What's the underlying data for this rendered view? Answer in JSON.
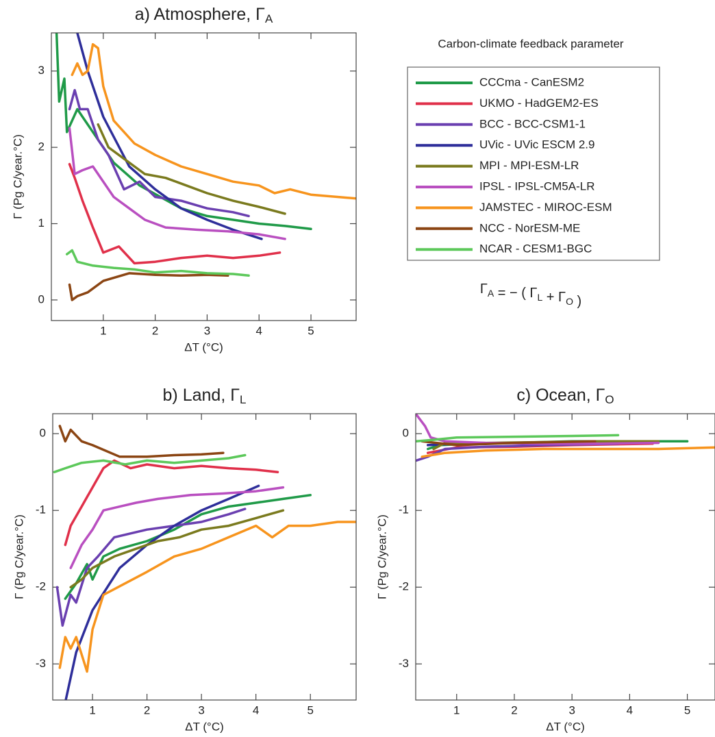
{
  "chart_data": [
    {
      "type": "line",
      "title": "a) Atmosphere, Γ",
      "title_subscript": "A",
      "x_label": "ΔT (°C)",
      "y_label": "Γ (Pg C/year.°C)",
      "xlim": [
        0,
        5.87
      ],
      "ylim": [
        -0.27,
        3.5
      ],
      "xticks": [
        1,
        2,
        3,
        4,
        5
      ],
      "yticks": [
        0,
        1,
        2,
        3
      ],
      "series": [
        {
          "name": "CCCma - CanESM2",
          "color": "#1f9a48",
          "x": [
            0.1,
            0.15,
            0.25,
            0.3,
            0.5,
            0.8,
            1.2,
            1.7,
            2.5,
            3.0,
            3.5,
            4.0,
            4.5,
            5.0
          ],
          "values": [
            3.5,
            2.6,
            2.9,
            2.2,
            2.5,
            2.2,
            1.8,
            1.5,
            1.2,
            1.1,
            1.05,
            1.0,
            0.97,
            0.93
          ]
        },
        {
          "name": "UKMO - HadGEM2-ES",
          "color": "#e0304a",
          "x": [
            0.35,
            0.45,
            0.6,
            0.8,
            1.0,
            1.3,
            1.6,
            2.0,
            2.5,
            3.0,
            3.5,
            4.0,
            4.4
          ],
          "values": [
            1.78,
            1.6,
            1.3,
            0.95,
            0.62,
            0.7,
            0.48,
            0.5,
            0.55,
            0.58,
            0.55,
            0.58,
            0.62
          ]
        },
        {
          "name": "BCC - BCC-CSM1-1",
          "color": "#6a3fb0",
          "x": [
            0.35,
            0.45,
            0.55,
            0.7,
            0.9,
            1.1,
            1.4,
            1.7,
            2.0,
            2.5,
            3.0,
            3.5,
            3.8
          ],
          "values": [
            2.5,
            2.75,
            2.5,
            2.5,
            2.1,
            1.9,
            1.45,
            1.55,
            1.35,
            1.3,
            1.2,
            1.15,
            1.1
          ]
        },
        {
          "name": "UVic - UVic ESCM 2.9",
          "color": "#2e2e9a",
          "x": [
            0.5,
            0.7,
            1.0,
            1.5,
            2.0,
            2.5,
            3.0,
            3.5,
            4.05
          ],
          "values": [
            3.5,
            3.0,
            2.4,
            1.75,
            1.45,
            1.2,
            1.05,
            0.92,
            0.8
          ]
        },
        {
          "name": "MPI - MPI-ESM-LR",
          "color": "#7a7a1e",
          "x": [
            0.9,
            1.1,
            1.4,
            1.8,
            2.2,
            2.6,
            3.0,
            3.5,
            4.0,
            4.5
          ],
          "values": [
            2.3,
            2.0,
            1.85,
            1.65,
            1.6,
            1.5,
            1.4,
            1.3,
            1.22,
            1.13
          ]
        },
        {
          "name": "IPSL - IPSL-CM5A-LR",
          "color": "#b94fc0",
          "x": [
            0.35,
            0.45,
            0.6,
            0.8,
            1.0,
            1.2,
            1.5,
            1.8,
            2.2,
            2.8,
            3.4,
            4.0,
            4.5
          ],
          "values": [
            2.25,
            1.65,
            1.7,
            1.75,
            1.55,
            1.35,
            1.2,
            1.05,
            0.95,
            0.92,
            0.9,
            0.86,
            0.8
          ]
        },
        {
          "name": "JAMSTEC - MIROC-ESM",
          "color": "#f7941d",
          "x": [
            0.4,
            0.5,
            0.6,
            0.7,
            0.8,
            0.9,
            1.0,
            1.2,
            1.6,
            2.0,
            2.5,
            3.0,
            3.5,
            4.0,
            4.3,
            4.6,
            5.0,
            5.87
          ],
          "values": [
            2.95,
            3.1,
            2.95,
            3.0,
            3.35,
            3.3,
            2.8,
            2.35,
            2.05,
            1.9,
            1.75,
            1.65,
            1.55,
            1.5,
            1.4,
            1.45,
            1.38,
            1.33
          ]
        },
        {
          "name": "NCC - NorESM-ME",
          "color": "#8b4513",
          "x": [
            0.35,
            0.4,
            0.5,
            0.7,
            1.0,
            1.5,
            2.0,
            2.5,
            3.0,
            3.4
          ],
          "values": [
            0.2,
            0.0,
            0.05,
            0.1,
            0.25,
            0.35,
            0.33,
            0.32,
            0.33,
            0.32
          ]
        },
        {
          "name": "NCAR - CESM1-BGC",
          "color": "#5cc85a",
          "x": [
            0.3,
            0.4,
            0.5,
            0.8,
            1.2,
            1.6,
            2.0,
            2.5,
            3.0,
            3.5,
            3.8
          ],
          "values": [
            0.6,
            0.65,
            0.5,
            0.45,
            0.42,
            0.4,
            0.36,
            0.38,
            0.35,
            0.34,
            0.32
          ]
        }
      ]
    },
    {
      "type": "line",
      "title": "b) Land, Γ",
      "title_subscript": "L",
      "x_label": "ΔT (°C)",
      "y_label": "Γ (Pg C/year.°C)",
      "xlim": [
        0.27,
        5.84
      ],
      "ylim": [
        -3.47,
        0.26
      ],
      "xticks": [
        1,
        2,
        3,
        4,
        5
      ],
      "yticks": [
        0,
        -1,
        -2,
        -3
      ],
      "series": [
        {
          "color": "#1f9a48",
          "x": [
            0.5,
            0.7,
            0.9,
            1.0,
            1.2,
            1.5,
            2.0,
            2.5,
            3.0,
            3.5,
            4.0,
            4.5,
            5.0
          ],
          "values": [
            -2.15,
            -1.95,
            -1.7,
            -1.9,
            -1.6,
            -1.5,
            -1.4,
            -1.25,
            -1.05,
            -0.95,
            -0.9,
            -0.85,
            -0.8
          ]
        },
        {
          "color": "#e0304a",
          "x": [
            0.5,
            0.6,
            0.8,
            1.0,
            1.2,
            1.4,
            1.7,
            2.0,
            2.5,
            3.0,
            3.5,
            4.0,
            4.4
          ],
          "values": [
            -1.45,
            -1.2,
            -0.95,
            -0.7,
            -0.45,
            -0.35,
            -0.45,
            -0.4,
            -0.45,
            -0.42,
            -0.45,
            -0.47,
            -0.5
          ]
        },
        {
          "color": "#6a3fb0",
          "x": [
            0.35,
            0.45,
            0.6,
            0.7,
            0.9,
            1.1,
            1.4,
            1.7,
            2.0,
            2.5,
            3.0,
            3.5,
            3.8
          ],
          "values": [
            -2.0,
            -2.5,
            -2.1,
            -2.2,
            -1.75,
            -1.6,
            -1.35,
            -1.3,
            -1.25,
            -1.2,
            -1.15,
            -1.05,
            -0.98
          ]
        },
        {
          "color": "#2e2e9a",
          "x": [
            0.5,
            0.7,
            1.0,
            1.5,
            2.0,
            2.5,
            3.0,
            3.5,
            4.05
          ],
          "values": [
            -3.5,
            -2.85,
            -2.3,
            -1.75,
            -1.45,
            -1.2,
            -1.0,
            -0.85,
            -0.68
          ]
        },
        {
          "color": "#7a7a1e",
          "x": [
            0.6,
            0.8,
            1.0,
            1.4,
            1.8,
            2.2,
            2.6,
            3.0,
            3.5,
            4.0,
            4.5
          ],
          "values": [
            -2.0,
            -1.9,
            -1.75,
            -1.6,
            -1.5,
            -1.4,
            -1.35,
            -1.25,
            -1.2,
            -1.1,
            -1.0
          ]
        },
        {
          "color": "#b94fc0",
          "x": [
            0.6,
            0.8,
            1.0,
            1.2,
            1.5,
            1.8,
            2.2,
            2.8,
            3.4,
            4.0,
            4.5
          ],
          "values": [
            -1.75,
            -1.45,
            -1.25,
            -1.0,
            -0.95,
            -0.9,
            -0.85,
            -0.8,
            -0.78,
            -0.75,
            -0.7
          ]
        },
        {
          "color": "#f7941d",
          "x": [
            0.4,
            0.5,
            0.6,
            0.7,
            0.9,
            1.0,
            1.2,
            1.6,
            2.0,
            2.5,
            3.0,
            3.5,
            4.0,
            4.3,
            4.6,
            5.0,
            5.5,
            5.84
          ],
          "values": [
            -3.05,
            -2.65,
            -2.8,
            -2.65,
            -3.1,
            -2.55,
            -2.1,
            -1.95,
            -1.8,
            -1.6,
            -1.5,
            -1.35,
            -1.2,
            -1.35,
            -1.2,
            -1.2,
            -1.15,
            -1.15
          ]
        },
        {
          "color": "#8b4513",
          "x": [
            0.4,
            0.5,
            0.6,
            0.8,
            1.0,
            1.5,
            2.0,
            2.5,
            3.0,
            3.4
          ],
          "values": [
            0.1,
            -0.1,
            0.05,
            -0.1,
            -0.15,
            -0.3,
            -0.3,
            -0.28,
            -0.27,
            -0.25
          ]
        },
        {
          "color": "#5cc85a",
          "x": [
            0.3,
            0.5,
            0.8,
            1.2,
            1.6,
            2.0,
            2.5,
            3.0,
            3.5,
            3.8
          ],
          "values": [
            -0.5,
            -0.45,
            -0.38,
            -0.35,
            -0.4,
            -0.35,
            -0.38,
            -0.35,
            -0.32,
            -0.28
          ]
        }
      ]
    },
    {
      "type": "line",
      "title": "c) Ocean, Γ",
      "title_subscript": "O",
      "x_label": "ΔT (°C)",
      "y_label": "Γ (Pg C/year.°C)",
      "xlim": [
        0.29,
        5.48
      ],
      "ylim": [
        -3.47,
        0.26
      ],
      "xticks": [
        1,
        2,
        3,
        4,
        5
      ],
      "yticks": [
        0,
        -1,
        -2,
        -3
      ],
      "series": [
        {
          "color": "#1f9a48",
          "x": [
            0.5,
            0.7,
            1.0,
            2.0,
            3.0,
            4.0,
            5.0
          ],
          "values": [
            -0.2,
            -0.15,
            -0.14,
            -0.12,
            -0.1,
            -0.1,
            -0.1
          ]
        },
        {
          "color": "#e0304a",
          "x": [
            0.5,
            1.0,
            2.0,
            3.0,
            4.4
          ],
          "values": [
            -0.25,
            -0.18,
            -0.17,
            -0.15,
            -0.13
          ]
        },
        {
          "color": "#6a3fb0",
          "x": [
            0.3,
            0.5,
            0.8,
            1.5,
            2.5,
            3.8
          ],
          "values": [
            -0.35,
            -0.3,
            -0.2,
            -0.17,
            -0.15,
            -0.13
          ]
        },
        {
          "color": "#2e2e9a",
          "x": [
            0.5,
            1.0,
            2.0,
            3.0,
            4.05
          ],
          "values": [
            -0.15,
            -0.13,
            -0.12,
            -0.12,
            -0.12
          ]
        },
        {
          "color": "#7a7a1e",
          "x": [
            0.6,
            0.8,
            1.5,
            2.5,
            3.5,
            4.5
          ],
          "values": [
            -0.2,
            -0.12,
            -0.12,
            -0.11,
            -0.1,
            -0.1
          ]
        },
        {
          "color": "#b94fc0",
          "x": [
            0.3,
            0.45,
            0.55,
            0.8,
            1.5,
            2.5,
            3.5,
            4.5
          ],
          "values": [
            0.25,
            0.1,
            -0.05,
            -0.1,
            -0.12,
            -0.13,
            -0.13,
            -0.12
          ]
        },
        {
          "color": "#f7941d",
          "x": [
            0.4,
            0.8,
            1.5,
            2.5,
            3.5,
            4.5,
            5.48
          ],
          "values": [
            -0.3,
            -0.25,
            -0.22,
            -0.2,
            -0.2,
            -0.2,
            -0.18
          ]
        },
        {
          "color": "#8b4513",
          "x": [
            0.4,
            1.0,
            2.0,
            3.4
          ],
          "values": [
            -0.1,
            -0.15,
            -0.12,
            -0.1
          ]
        },
        {
          "color": "#5cc85a",
          "x": [
            0.3,
            0.6,
            1.0,
            2.0,
            3.0,
            3.8
          ],
          "values": [
            -0.1,
            -0.08,
            -0.05,
            -0.04,
            -0.03,
            -0.02
          ]
        }
      ]
    }
  ],
  "legend": {
    "title": "Carbon-climate feedback parameter",
    "formula": [
      {
        "text": "Γ",
        "sub": "A"
      },
      {
        "text": " =  − ( Γ",
        "sub": "L"
      },
      {
        "text": " + Γ",
        "sub": "O"
      },
      {
        "text": " )"
      }
    ]
  }
}
